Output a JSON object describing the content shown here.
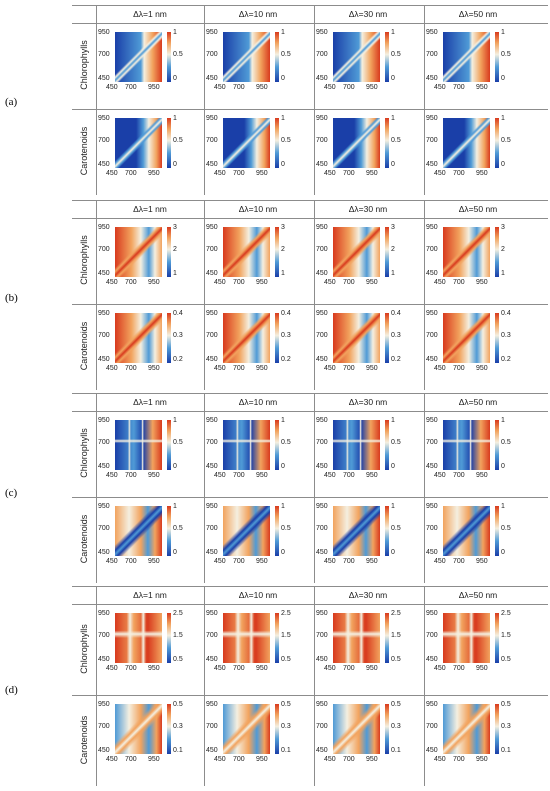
{
  "figure": {
    "column_headers": [
      "Δλ=1 nm",
      "Δλ=10 nm",
      "Δλ=30 nm",
      "Δλ=50 nm"
    ],
    "row_labels": [
      "Chlorophylls",
      "Carotenoids"
    ],
    "axis_ticks": [
      "450",
      "700",
      "950"
    ],
    "panels": [
      {
        "label": "(a)",
        "colorbars": [
          [
            "1",
            "0.5",
            "0"
          ],
          [
            "1",
            "0.5",
            "0"
          ]
        ]
      },
      {
        "label": "(b)",
        "colorbars": [
          [
            "3",
            "2",
            "1"
          ],
          [
            "0.4",
            "0.3",
            "0.2"
          ]
        ]
      },
      {
        "label": "(c)",
        "colorbars": [
          [
            "1",
            "0.5",
            "0"
          ],
          [
            "1",
            "0.5",
            "0"
          ]
        ]
      },
      {
        "label": "(d)",
        "colorbars": [
          [
            "2.5",
            "1.5",
            "0.5"
          ],
          [
            "0.5",
            "0.3",
            "0.1"
          ]
        ]
      }
    ]
  },
  "colors": {
    "low": "#1a3fa8",
    "mid_low": "#4f9ad6",
    "mid": "#f4efe0",
    "mid_high": "#f2a35e",
    "high": "#d83a1e",
    "grid_line": "#8c8c8c"
  }
}
